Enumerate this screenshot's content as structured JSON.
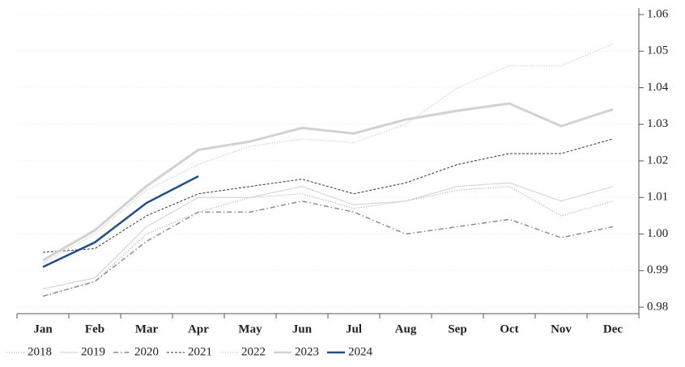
{
  "chart_data": {
    "type": "line",
    "categories": [
      "Jan",
      "Feb",
      "Mar",
      "Apr",
      "May",
      "Jun",
      "Jul",
      "Aug",
      "Sep",
      "Oct",
      "Nov",
      "Dec"
    ],
    "ylim": [
      0.98,
      1.06
    ],
    "yticks": [
      0.98,
      0.99,
      {
        "value": 1,
        "label": "1.00"
      },
      1.01,
      1.02,
      1.03,
      1.04,
      1.05,
      1.06
    ],
    "grid": true,
    "legend": "bottom",
    "series": [
      {
        "name": "2018",
        "color": "#9a9a9a",
        "dash": "1,2",
        "width": 1,
        "values": [
          0.983,
          0.987,
          1.0,
          1.006,
          1.01,
          1.011,
          1.007,
          1.009,
          1.012,
          1.013,
          1.005,
          1.009
        ]
      },
      {
        "name": "2019",
        "color": "#cfcfcf",
        "dash": "none",
        "width": 1,
        "values": [
          0.985,
          0.988,
          1.002,
          1.01,
          1.01,
          1.013,
          1.008,
          1.009,
          1.013,
          1.014,
          1.009,
          1.013
        ]
      },
      {
        "name": "2020",
        "color": "#8c8c8c",
        "dash": "6,3,1.5,3",
        "width": 1.5,
        "values": [
          0.983,
          0.987,
          0.998,
          1.006,
          1.006,
          1.009,
          1.006,
          1.0,
          1.002,
          1.004,
          0.999,
          1.002
        ]
      },
      {
        "name": "2021",
        "color": "#333333",
        "dash": "3,2",
        "width": 1,
        "values": [
          0.995,
          0.996,
          1.005,
          1.011,
          1.013,
          1.015,
          1.011,
          1.014,
          1.019,
          1.022,
          1.022,
          1.026
        ]
      },
      {
        "name": "2022",
        "color": "#b5b5b5",
        "dash": "1,2",
        "width": 1,
        "values": [
          0.992,
          1.0,
          1.012,
          1.019,
          1.024,
          1.026,
          1.025,
          1.03,
          1.04,
          1.046,
          1.046,
          1.052
        ]
      },
      {
        "name": "2023",
        "color": "#d2d2d2",
        "dash": "none",
        "width": 3,
        "values": [
          0.9928,
          1.001,
          1.0131,
          1.023,
          1.0253,
          1.029,
          1.0275,
          1.0313,
          1.0337,
          1.0357,
          1.0295,
          1.0341
        ]
      },
      {
        "name": "2024",
        "color": "#1f4e8c",
        "dash": "none",
        "width": 2.5,
        "values": [
          0.991,
          0.9977,
          1.0085,
          1.0158,
          null,
          null,
          null,
          null,
          null,
          null,
          null,
          null
        ]
      }
    ]
  }
}
